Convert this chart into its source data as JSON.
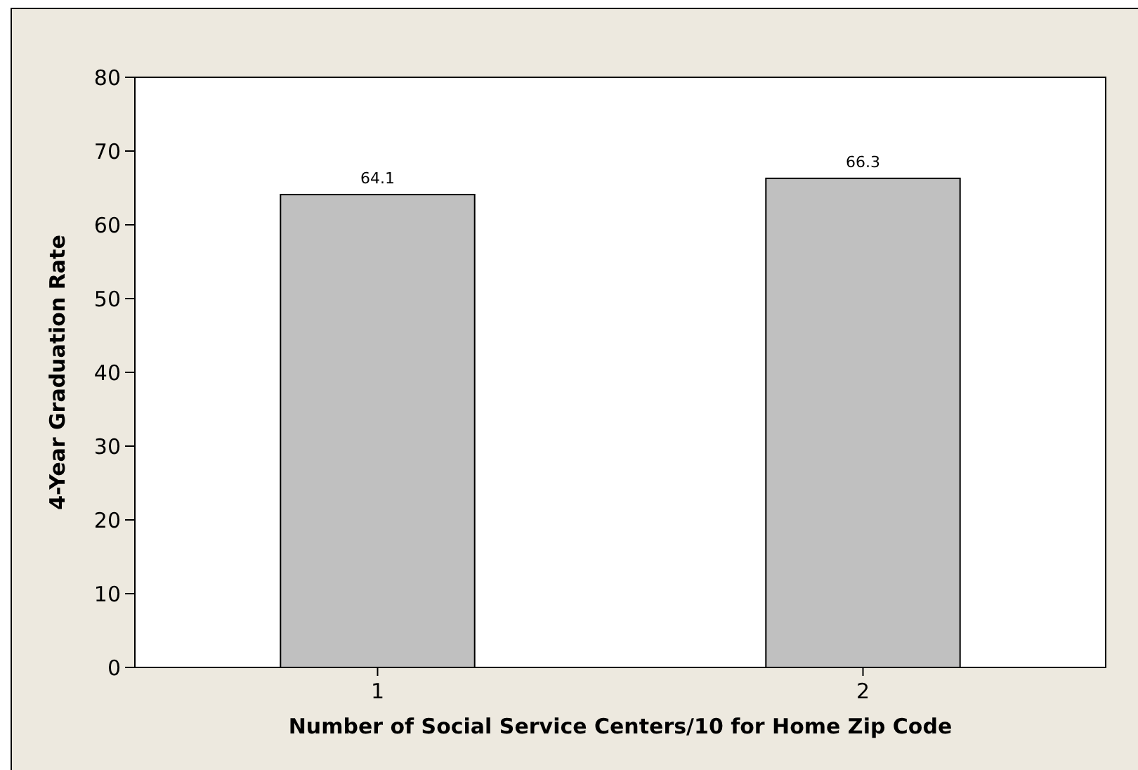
{
  "chart_data": {
    "type": "bar",
    "xlabel": "Number of Social Service Centers/10 for Home Zip Code",
    "ylabel": "4-Year Graduation Rate",
    "categories": [
      "1",
      "2"
    ],
    "values": [
      64.1,
      66.3
    ],
    "color": "#c0c0c0",
    "ylim": [
      0,
      80
    ],
    "yticks": [
      0,
      10,
      20,
      30,
      40,
      50,
      60,
      70,
      80
    ],
    "data_labels": true,
    "grid": false
  }
}
